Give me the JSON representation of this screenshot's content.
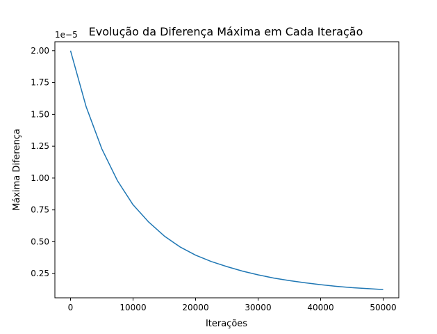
{
  "chart_data": {
    "type": "line",
    "title": "Evolução da Diferença Máxima em Cada Iteração",
    "xlabel": "Iterações",
    "ylabel": "Máxima Diferença",
    "y_offset_label": "1e−5",
    "xlim": [
      -2500,
      52500
    ],
    "ylim": [
      0.06,
      2.07
    ],
    "x_ticks": [
      0,
      10000,
      20000,
      30000,
      40000,
      50000
    ],
    "x_tick_labels": [
      "0",
      "10000",
      "20000",
      "30000",
      "40000",
      "50000"
    ],
    "y_ticks": [
      0.25,
      0.5,
      0.75,
      1.0,
      1.25,
      1.5,
      1.75,
      2.0
    ],
    "y_tick_labels": [
      "0.25",
      "0.50",
      "0.75",
      "1.00",
      "1.25",
      "1.50",
      "1.75",
      "2.00"
    ],
    "grid": false,
    "series": [
      {
        "color": "#1f77b4",
        "x": [
          0,
          2500,
          5000,
          7500,
          10000,
          12500,
          15000,
          17500,
          20000,
          22500,
          25000,
          27500,
          30000,
          32500,
          35000,
          37500,
          40000,
          42500,
          45000,
          47500,
          50000
        ],
        "y": [
          2.0,
          1.56,
          1.23,
          0.98,
          0.79,
          0.655,
          0.545,
          0.46,
          0.395,
          0.345,
          0.305,
          0.27,
          0.24,
          0.215,
          0.195,
          0.178,
          0.163,
          0.15,
          0.14,
          0.132,
          0.125
        ]
      }
    ]
  }
}
